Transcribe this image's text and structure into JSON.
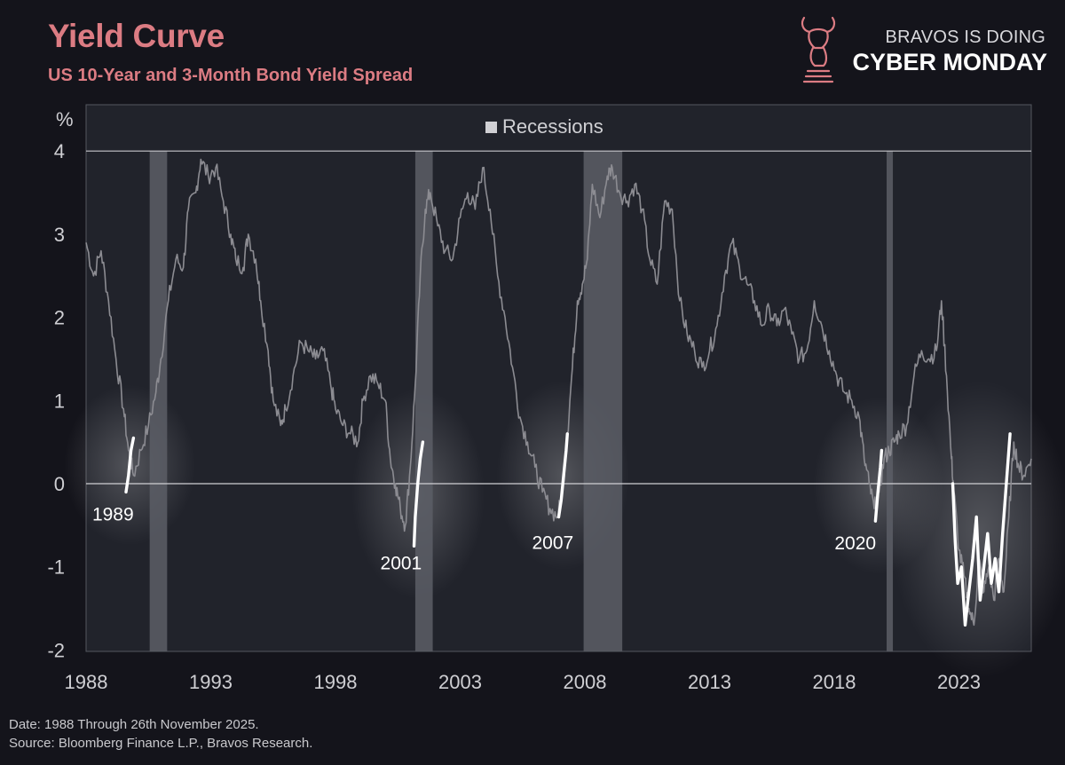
{
  "header": {
    "title": "Yield Curve",
    "subtitle": "US 10-Year and 3-Month Bond Yield Spread"
  },
  "brand": {
    "line1": "BRAVOS IS DOING",
    "line2": "CYBER MONDAY",
    "logo_icon": "bull-chess-knight-icon"
  },
  "footer": {
    "date_note": "Date: 1988 Through 26th November 2025.",
    "source_note": "Source: Bloomberg Finance L.P., Bravos Research."
  },
  "colors": {
    "background": "#14141b",
    "plot_background": "#21232b",
    "title": "#dc7c83",
    "series": "#8c8c92",
    "highlight": "#ffffff",
    "recession": "#5c5e66"
  },
  "chart_data": {
    "type": "line",
    "title": "Yield Curve",
    "subtitle": "US 10-Year and 3-Month Bond Yield Spread",
    "unit_label": "%",
    "xlim": [
      1988,
      2025.9
    ],
    "ylim": [
      -2,
      4.6
    ],
    "xticks": [
      1988,
      1993,
      1998,
      2003,
      2008,
      2013,
      2018,
      2023
    ],
    "yticks": [
      -2,
      -1,
      0,
      1,
      2,
      3,
      4
    ],
    "legend": {
      "label": "Recessions",
      "position": "top-center"
    },
    "recessions": [
      [
        1990.55,
        1991.25
      ],
      [
        2001.2,
        2001.9
      ],
      [
        2007.95,
        2009.5
      ],
      [
        2020.1,
        2020.35
      ]
    ],
    "series": [
      {
        "name": "10Y-3M spread",
        "x": [
          1988.0,
          1988.3,
          1988.6,
          1988.9,
          1989.2,
          1989.5,
          1989.7,
          1989.9,
          1990.2,
          1990.5,
          1990.8,
          1991.0,
          1991.3,
          1991.6,
          1991.9,
          1992.1,
          1992.4,
          1992.6,
          1992.9,
          1993.2,
          1993.5,
          1993.8,
          1994.0,
          1994.3,
          1994.5,
          1994.8,
          1995.0,
          1995.3,
          1995.5,
          1995.8,
          1996.0,
          1996.3,
          1996.6,
          1996.9,
          1997.2,
          1997.5,
          1997.8,
          1998.0,
          1998.3,
          1998.6,
          1998.9,
          1999.1,
          1999.4,
          1999.7,
          2000.0,
          2000.2,
          2000.4,
          2000.6,
          2000.8,
          2001.0,
          2001.2,
          2001.4,
          2001.6,
          2001.8,
          2002.1,
          2002.4,
          2002.7,
          2003.0,
          2003.3,
          2003.6,
          2003.9,
          2004.2,
          2004.5,
          2004.8,
          2005.1,
          2005.4,
          2005.7,
          2006.0,
          2006.3,
          2006.6,
          2006.9,
          2007.1,
          2007.3,
          2007.5,
          2007.7,
          2007.9,
          2008.1,
          2008.3,
          2008.6,
          2008.9,
          2009.1,
          2009.4,
          2009.7,
          2010.0,
          2010.3,
          2010.6,
          2010.9,
          2011.2,
          2011.5,
          2011.8,
          2012.1,
          2012.4,
          2012.7,
          2013.0,
          2013.3,
          2013.6,
          2013.9,
          2014.2,
          2014.5,
          2014.8,
          2015.1,
          2015.4,
          2015.7,
          2016.0,
          2016.3,
          2016.6,
          2016.9,
          2017.2,
          2017.5,
          2017.8,
          2018.1,
          2018.4,
          2018.7,
          2019.0,
          2019.2,
          2019.4,
          2019.6,
          2019.8,
          2020.0,
          2020.2,
          2020.4,
          2020.6,
          2020.9,
          2021.2,
          2021.5,
          2021.8,
          2022.1,
          2022.3,
          2022.5,
          2022.7,
          2022.8,
          2023.0,
          2023.2,
          2023.4,
          2023.6,
          2023.8,
          2024.0,
          2024.2,
          2024.4,
          2024.6,
          2024.8,
          2025.0,
          2025.2,
          2025.4,
          2025.6,
          2025.9
        ],
        "y": [
          2.9,
          2.5,
          2.8,
          2.2,
          1.5,
          0.9,
          0.4,
          0.1,
          0.4,
          0.7,
          1.1,
          1.5,
          2.2,
          2.7,
          2.6,
          3.3,
          3.5,
          3.9,
          3.7,
          3.8,
          3.4,
          3.0,
          2.7,
          2.6,
          3.0,
          2.7,
          2.2,
          1.6,
          1.0,
          0.7,
          0.9,
          1.3,
          1.7,
          1.6,
          1.5,
          1.6,
          1.2,
          0.9,
          0.7,
          0.6,
          0.5,
          1.0,
          1.3,
          1.2,
          1.0,
          0.3,
          0.0,
          -0.3,
          -0.5,
          0.2,
          1.2,
          2.5,
          3.3,
          3.5,
          3.1,
          2.8,
          2.7,
          3.2,
          3.5,
          3.3,
          3.8,
          3.3,
          2.5,
          2.0,
          1.4,
          0.8,
          0.5,
          0.2,
          -0.1,
          -0.3,
          -0.4,
          -0.1,
          0.6,
          1.4,
          2.2,
          2.4,
          2.7,
          3.6,
          3.2,
          3.7,
          3.8,
          3.5,
          3.4,
          3.6,
          3.3,
          2.7,
          2.4,
          3.4,
          3.3,
          2.2,
          1.8,
          1.6,
          1.4,
          1.6,
          1.9,
          2.5,
          2.9,
          2.6,
          2.4,
          2.2,
          1.9,
          2.1,
          1.9,
          2.1,
          1.8,
          1.5,
          1.6,
          2.2,
          1.9,
          1.6,
          1.3,
          1.1,
          1.0,
          0.8,
          0.3,
          0.0,
          -0.3,
          -0.1,
          0.3,
          0.4,
          0.5,
          0.6,
          0.7,
          1.3,
          1.6,
          1.5,
          1.6,
          2.2,
          1.3,
          0.3,
          -0.1,
          -0.8,
          -1.1,
          -1.5,
          -1.7,
          -0.9,
          -1.3,
          -1.0,
          -1.4,
          -0.9,
          -1.3,
          -0.4,
          0.5,
          0.2,
          0.1,
          0.3
        ]
      }
    ],
    "highlights": [
      {
        "label": "1989",
        "x": [
          1989.6,
          1989.7,
          1989.8,
          1989.9
        ],
        "y": [
          -0.1,
          0.1,
          0.4,
          0.55
        ]
      },
      {
        "label": "2001",
        "x": [
          2001.15,
          2001.2,
          2001.3,
          2001.4,
          2001.5
        ],
        "y": [
          -0.75,
          -0.4,
          0.0,
          0.3,
          0.5
        ]
      },
      {
        "label": "2007",
        "x": [
          2006.95,
          2007.05,
          2007.15,
          2007.25,
          2007.3
        ],
        "y": [
          -0.4,
          -0.2,
          0.1,
          0.4,
          0.6
        ]
      },
      {
        "label": "2020",
        "x": [
          2019.65,
          2019.75,
          2019.85,
          2019.9
        ],
        "y": [
          -0.45,
          -0.1,
          0.2,
          0.4
        ]
      },
      {
        "label": "",
        "x": [
          2022.75,
          2022.85,
          2022.95,
          2023.1,
          2023.25,
          2023.4,
          2023.55,
          2023.7,
          2023.85,
          2024.0,
          2024.15,
          2024.3,
          2024.45,
          2024.6,
          2024.75,
          2024.9,
          2025.05
        ],
        "y": [
          0.0,
          -0.7,
          -1.2,
          -1.0,
          -1.7,
          -1.3,
          -0.9,
          -0.4,
          -1.4,
          -1.0,
          -0.6,
          -1.2,
          -0.9,
          -1.3,
          -0.6,
          0.0,
          0.6
        ]
      }
    ]
  }
}
